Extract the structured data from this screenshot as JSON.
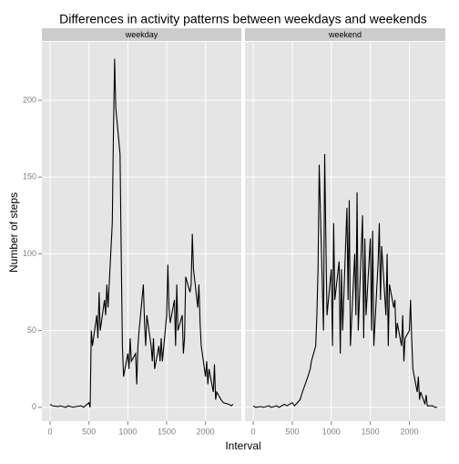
{
  "chart_data": {
    "type": "line",
    "title": "Differences in activity patterns between weekdays and weekends",
    "x_label": "Interval",
    "y_label": "Number of steps",
    "xlim": [
      -106,
      2461
    ],
    "ylim": [
      -9,
      238
    ],
    "xticks": [
      0,
      500,
      1000,
      1500,
      2000
    ],
    "yticks": [
      0,
      50,
      100,
      150,
      200
    ],
    "grid": true,
    "color": "#000000",
    "panels": [
      {
        "name": "weekday",
        "x": [
          0,
          30,
          100,
          130,
          200,
          230,
          300,
          330,
          400,
          430,
          500,
          515,
          530,
          545,
          600,
          615,
          630,
          645,
          700,
          715,
          730,
          745,
          800,
          815,
          830,
          845,
          900,
          915,
          930,
          945,
          1000,
          1015,
          1030,
          1045,
          1100,
          1115,
          1130,
          1145,
          1200,
          1215,
          1230,
          1245,
          1300,
          1315,
          1330,
          1345,
          1400,
          1415,
          1430,
          1445,
          1500,
          1515,
          1530,
          1545,
          1600,
          1615,
          1630,
          1645,
          1700,
          1715,
          1730,
          1745,
          1800,
          1815,
          1830,
          1845,
          1900,
          1915,
          1930,
          1945,
          2000,
          2015,
          2030,
          2045,
          2100,
          2115,
          2130,
          2145,
          2200,
          2230,
          2300,
          2330,
          2355
        ],
        "values": [
          2,
          1,
          0.5,
          1,
          0,
          1,
          0,
          0.5,
          1,
          0,
          3,
          0,
          50,
          40,
          60,
          45,
          75,
          50,
          70,
          60,
          80,
          65,
          120,
          180,
          227,
          195,
          165,
          100,
          40,
          20,
          35,
          25,
          45,
          30,
          35,
          15,
          40,
          50,
          80,
          55,
          40,
          60,
          40,
          30,
          45,
          25,
          40,
          30,
          45,
          30,
          60,
          93,
          65,
          55,
          70,
          40,
          80,
          50,
          60,
          35,
          45,
          85,
          75,
          80,
          113,
          90,
          65,
          80,
          55,
          40,
          20,
          30,
          15,
          25,
          10,
          28,
          5,
          10,
          5,
          3,
          2,
          1,
          2
        ]
      },
      {
        "name": "weekend",
        "x": [
          0,
          30,
          100,
          130,
          200,
          230,
          300,
          330,
          400,
          430,
          500,
          530,
          600,
          630,
          700,
          730,
          745,
          800,
          815,
          830,
          845,
          900,
          915,
          930,
          945,
          1000,
          1015,
          1030,
          1045,
          1100,
          1115,
          1130,
          1145,
          1200,
          1215,
          1230,
          1245,
          1300,
          1315,
          1330,
          1345,
          1400,
          1415,
          1430,
          1445,
          1500,
          1515,
          1530,
          1545,
          1600,
          1615,
          1630,
          1645,
          1700,
          1715,
          1730,
          1745,
          1800,
          1815,
          1830,
          1845,
          1900,
          1915,
          1930,
          1945,
          2000,
          2015,
          2030,
          2045,
          2100,
          2115,
          2130,
          2145,
          2200,
          2215,
          2230,
          2300,
          2330,
          2355
        ],
        "values": [
          1,
          0,
          0.5,
          0,
          1,
          0,
          1,
          0,
          2,
          1,
          3,
          1,
          5,
          10,
          20,
          25,
          30,
          40,
          60,
          90,
          158,
          50,
          165,
          110,
          60,
          90,
          40,
          120,
          70,
          95,
          35,
          90,
          50,
          130,
          70,
          135,
          40,
          100,
          60,
          140,
          50,
          125,
          45,
          110,
          60,
          110,
          50,
          115,
          40,
          95,
          120,
          70,
          105,
          60,
          100,
          40,
          80,
          65,
          70,
          45,
          55,
          40,
          60,
          30,
          45,
          50,
          70,
          45,
          25,
          10,
          20,
          5,
          10,
          2,
          8,
          1,
          1,
          0,
          0
        ]
      }
    ]
  }
}
